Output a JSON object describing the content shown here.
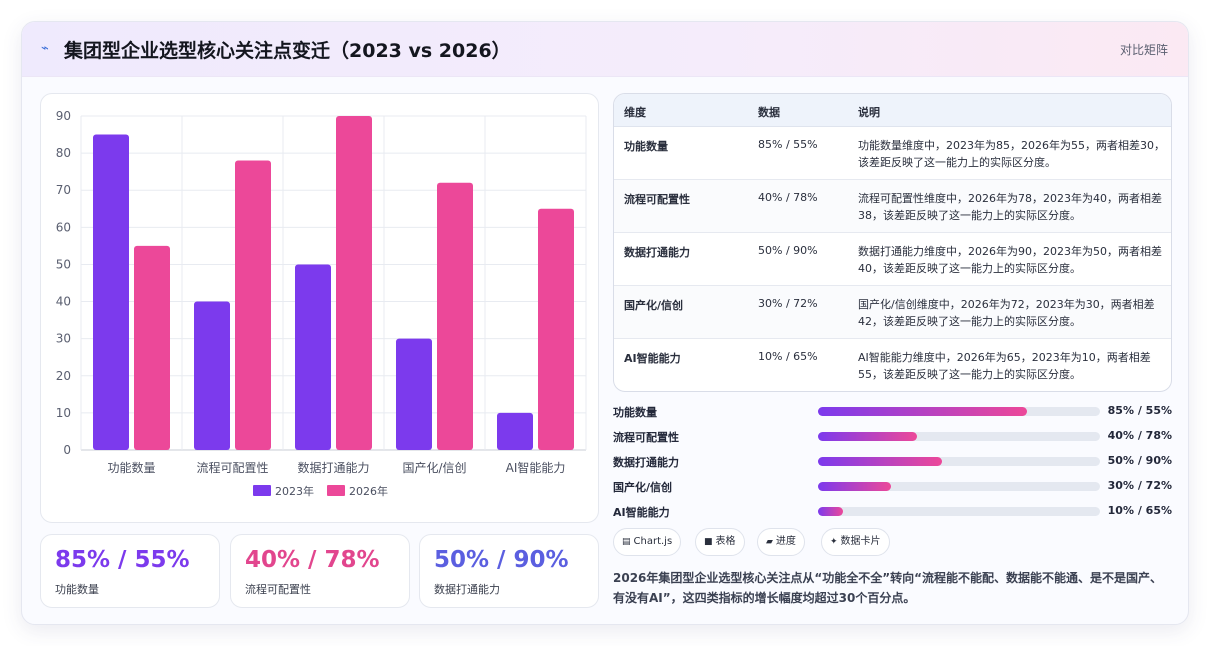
{
  "header": {
    "icon": "trend-line-icon",
    "title": "集团型企业选型核心关注点变迁（2023 vs 2026）",
    "mode": "对比矩阵"
  },
  "chart_data": {
    "type": "bar",
    "categories": [
      "功能数量",
      "流程可配置性",
      "数据打通能力",
      "国产化/信创",
      "AI智能能力"
    ],
    "series": [
      {
        "name": "2023年",
        "values": [
          85,
          40,
          50,
          30,
          10
        ],
        "color": "#7c3aed"
      },
      {
        "name": "2026年",
        "values": [
          55,
          78,
          90,
          72,
          65
        ],
        "color": "#ec4899"
      }
    ],
    "ylim": [
      0,
      90
    ],
    "yticks": [
      0,
      10,
      20,
      30,
      40,
      50,
      60,
      70,
      80,
      90
    ],
    "grid": true,
    "legend": "bottom"
  },
  "kpis": [
    {
      "value": "85% / 55%",
      "label": "功能数量",
      "color": "#7c3aed"
    },
    {
      "value": "40% / 78%",
      "label": "流程可配置性",
      "color": "#e2468e"
    },
    {
      "value": "50% / 90%",
      "label": "数据打通能力",
      "color": "#5b5fe0"
    }
  ],
  "table": {
    "headers": [
      "维度",
      "数据",
      "说明"
    ],
    "rows": [
      {
        "dim": "功能数量",
        "value": "85% / 55%",
        "desc": "功能数量维度中，2023年为85，2026年为55，两者相差30，该差距反映了这一能力上的实际区分度。"
      },
      {
        "dim": "流程可配置性",
        "value": "40% / 78%",
        "desc": "流程可配置性维度中，2026年为78，2023年为40，两者相差38，该差距反映了这一能力上的实际区分度。"
      },
      {
        "dim": "数据打通能力",
        "value": "50% / 90%",
        "desc": "数据打通能力维度中，2026年为90，2023年为50，两者相差40，该差距反映了这一能力上的实际区分度。"
      },
      {
        "dim": "国产化/信创",
        "value": "30% / 72%",
        "desc": "国产化/信创维度中，2026年为72，2023年为30，两者相差42，该差距反映了这一能力上的实际区分度。"
      },
      {
        "dim": "AI智能能力",
        "value": "10% / 65%",
        "desc": "AI智能能力维度中，2026年为65，2023年为10，两者相差55，该差距反映了这一能力上的实际区分度。"
      }
    ]
  },
  "progress": [
    {
      "label": "功能数量",
      "value": "85% / 55%",
      "fill": 0.74
    },
    {
      "label": "流程可配置性",
      "value": "40% / 78%",
      "fill": 0.35
    },
    {
      "label": "数据打通能力",
      "value": "50% / 90%",
      "fill": 0.44
    },
    {
      "label": "国产化/信创",
      "value": "30% / 72%",
      "fill": 0.26
    },
    {
      "label": "AI智能能力",
      "value": "10% / 65%",
      "fill": 0.09
    }
  ],
  "chips": [
    {
      "icon": "chart-icon",
      "glyph": "▤",
      "label": "Chart.js"
    },
    {
      "icon": "table-icon",
      "glyph": "■",
      "label": "表格"
    },
    {
      "icon": "progress-icon",
      "glyph": "▰",
      "label": "进度"
    },
    {
      "icon": "card-icon",
      "glyph": "✦",
      "label": "数据卡片"
    }
  ],
  "summary": "2026年集团型企业选型核心关注点从“功能全不全”转向“流程能不能配、数据能不能通、是不是国产、有没有AI”，这四类指标的增长幅度均超过30个百分点。"
}
